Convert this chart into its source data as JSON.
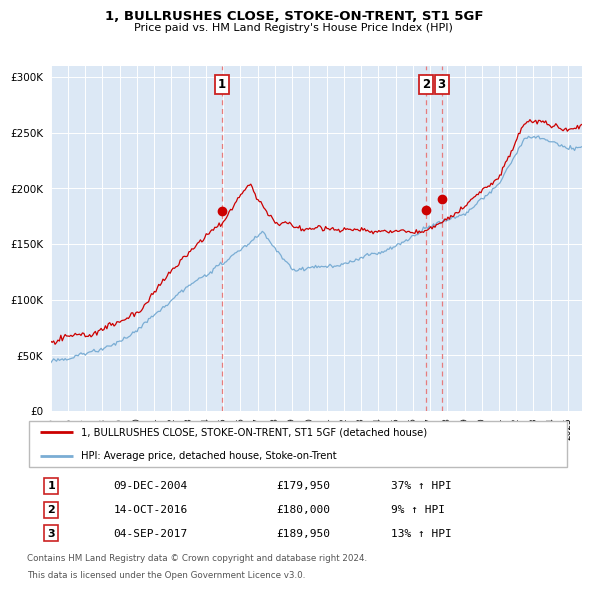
{
  "title": "1, BULLRUSHES CLOSE, STOKE-ON-TRENT, ST1 5GF",
  "subtitle": "Price paid vs. HM Land Registry's House Price Index (HPI)",
  "legend_line1": "1, BULLRUSHES CLOSE, STOKE-ON-TRENT, ST1 5GF (detached house)",
  "legend_line2": "HPI: Average price, detached house, Stoke-on-Trent",
  "footer1": "Contains HM Land Registry data © Crown copyright and database right 2024.",
  "footer2": "This data is licensed under the Open Government Licence v3.0.",
  "table_rows": [
    {
      "num": "1",
      "date": "09-DEC-2004",
      "price": "£179,950",
      "pct": "37% ↑ HPI"
    },
    {
      "num": "2",
      "date": "14-OCT-2016",
      "price": "£180,000",
      "pct": "9% ↑ HPI"
    },
    {
      "num": "3",
      "date": "04-SEP-2017",
      "price": "£189,950",
      "pct": "13% ↑ HPI"
    }
  ],
  "sale_years": [
    2004.93,
    2016.79,
    2017.67
  ],
  "sale_prices": [
    179950,
    180000,
    189950
  ],
  "red_line_color": "#cc0000",
  "blue_line_color": "#7aadd4",
  "vline_color": "#e87070",
  "background_chart": "#dce8f5",
  "background_fig": "#ffffff",
  "grid_color": "#ffffff",
  "border_color": "#bbbbbb",
  "box_edge_color": "#cc2222",
  "ylim": [
    0,
    310000
  ],
  "xlim_start": 1995.0,
  "xlim_end": 2025.8,
  "yticks": [
    0,
    50000,
    100000,
    150000,
    200000,
    250000,
    300000
  ],
  "xtick_years": [
    1995,
    1996,
    1997,
    1998,
    1999,
    2000,
    2001,
    2002,
    2003,
    2004,
    2005,
    2006,
    2007,
    2008,
    2009,
    2010,
    2011,
    2012,
    2013,
    2014,
    2015,
    2016,
    2017,
    2018,
    2019,
    2020,
    2021,
    2022,
    2023,
    2024,
    2025
  ]
}
